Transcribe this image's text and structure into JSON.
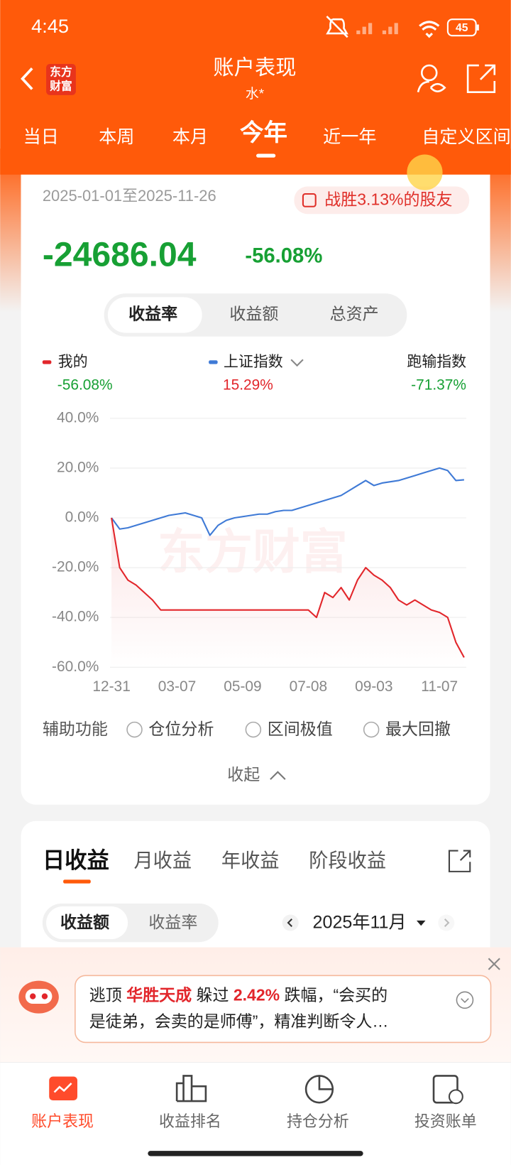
{
  "status_bar": {
    "time": "4:45",
    "battery": "45"
  },
  "header": {
    "logo": [
      "东方",
      "财富"
    ],
    "title": "账户表现",
    "subtitle": "水*"
  },
  "period_tabs": [
    "当日",
    "本周",
    "本月",
    "今年",
    "近一年",
    "自定义区间"
  ],
  "summary": {
    "date_range": "2025-01-01至2025-11-26",
    "badge": "战胜3.13%的股友",
    "profit": "-24686.04",
    "profit_rate": "-56.08%"
  },
  "segment": [
    "收益率",
    "收益额",
    "总资产"
  ],
  "chart_data": {
    "type": "line",
    "watermark": "东方财富",
    "categories": [
      "12-31",
      null,
      null,
      null,
      null,
      null,
      null,
      null,
      "03-07",
      null,
      null,
      null,
      null,
      null,
      null,
      null,
      "05-09",
      null,
      null,
      null,
      null,
      null,
      null,
      null,
      "07-08",
      null,
      null,
      null,
      null,
      null,
      null,
      null,
      "09-03",
      null,
      null,
      null,
      null,
      null,
      null,
      null,
      "11-07",
      null,
      null,
      null
    ],
    "series": [
      {
        "name": "我的",
        "color": "#e2262b",
        "latest": "-56.08%",
        "values": [
          0,
          -20,
          -25,
          -27,
          -30,
          -33,
          -37,
          -37,
          -37,
          -37,
          -37,
          -37,
          -37,
          -37,
          -37,
          -37,
          -37,
          -37,
          -37,
          -37,
          -37,
          -37,
          -37,
          -37,
          -37,
          -40,
          -30,
          -32,
          -28,
          -33,
          -25,
          -20,
          -23,
          -25,
          -28,
          -33,
          -35,
          -33,
          -35,
          -37,
          -38,
          -40,
          -50,
          -56.08
        ]
      },
      {
        "name": "上证指数",
        "color": "#3f7ad6",
        "latest": "15.29%",
        "values": [
          0,
          -4.5,
          -4,
          -3,
          -2,
          -1,
          0,
          1,
          1.5,
          2,
          1,
          0,
          -7,
          -3,
          -1,
          0,
          0.5,
          1,
          1.5,
          1.5,
          2.5,
          3,
          3,
          4,
          5,
          6,
          7,
          8,
          9,
          11,
          13,
          15,
          13,
          14,
          14.5,
          15,
          16,
          17,
          18,
          19,
          20,
          19,
          15,
          15.29
        ]
      }
    ],
    "underperform": {
      "label": "跑输指数",
      "value": "-71.37%"
    },
    "ylim": [
      -60,
      40
    ],
    "yticks": [
      {
        "value": 40,
        "label": "40.0%"
      },
      {
        "value": 20,
        "label": "20.0%"
      },
      {
        "value": 0,
        "label": "0.0%"
      },
      {
        "value": -20,
        "label": "-20.0%"
      },
      {
        "value": -40,
        "label": "-40.0%"
      },
      {
        "value": -60,
        "label": "-60.0%"
      }
    ],
    "grid": true
  },
  "aux": {
    "label": "辅助功能",
    "options": [
      "仓位分析",
      "区间极值",
      "最大回撤"
    ],
    "collapse": "收起"
  },
  "earnings": {
    "tabs": [
      "日收益",
      "月收益",
      "年收益",
      "阶段收益"
    ],
    "toggle": [
      "收益额",
      "收益率"
    ],
    "month": "2025年11月"
  },
  "banner": {
    "line1": [
      "逃顶 ",
      "华胜天成",
      " 躲过 ",
      "2.42%",
      " 跌幅，“会买的"
    ],
    "line2": "是徒弟，会卖的是师傅”，精准判断令人…"
  },
  "bottom_nav": [
    "账户表现",
    "收益排名",
    "持仓分析",
    "投资账单"
  ]
}
